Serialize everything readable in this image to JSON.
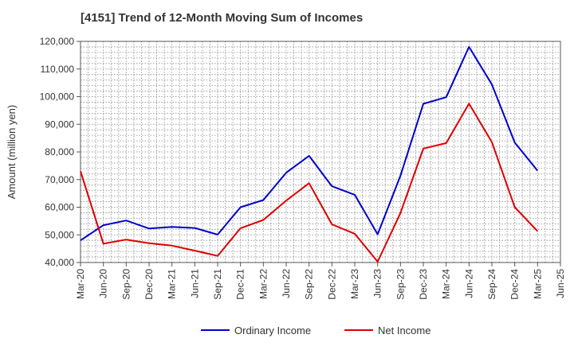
{
  "chart_data": {
    "type": "line",
    "title": "[4151]  Trend of 12-Month Moving Sum of Incomes",
    "xlabel": "",
    "ylabel": "Amount (million yen)",
    "ylim": [
      40000,
      120000
    ],
    "yticks": [
      40000,
      50000,
      60000,
      70000,
      80000,
      90000,
      100000,
      110000,
      120000
    ],
    "ytick_labels": [
      "40,000",
      "50,000",
      "60,000",
      "70,000",
      "80,000",
      "90,000",
      "100,000",
      "110,000",
      "120,000"
    ],
    "x_tick_labels": [
      "Mar-20",
      "Jun-20",
      "Sep-20",
      "Dec-20",
      "Mar-21",
      "Jun-21",
      "Sep-21",
      "Dec-21",
      "Mar-22",
      "Jun-22",
      "Sep-22",
      "Dec-22",
      "Mar-23",
      "Jun-23",
      "Sep-23",
      "Dec-23",
      "Mar-24",
      "Jun-24",
      "Sep-24",
      "Dec-24",
      "Mar-25",
      "Jun-25"
    ],
    "categories": [
      "Mar-20",
      "Jun-20",
      "Sep-20",
      "Dec-20",
      "Mar-21",
      "Jun-21",
      "Sep-21",
      "Dec-21",
      "Mar-22",
      "Jun-22",
      "Sep-22",
      "Dec-22",
      "Mar-23",
      "Jun-23",
      "Sep-23",
      "Dec-23",
      "Mar-24",
      "Jun-24",
      "Sep-24",
      "Dec-24",
      "Mar-25"
    ],
    "grid": true,
    "legend_position": "bottom-center",
    "series": [
      {
        "name": "Ordinary Income",
        "color": "#0000cc",
        "values": [
          48000,
          53500,
          55200,
          52300,
          52900,
          52500,
          50100,
          60000,
          62600,
          72500,
          78600,
          67600,
          64500,
          50200,
          71400,
          97400,
          99800,
          118000,
          104400,
          83400,
          73200
        ]
      },
      {
        "name": "Net Income",
        "color": "#dd0000",
        "values": [
          73000,
          46800,
          48300,
          47000,
          46100,
          44300,
          42400,
          52400,
          55400,
          62400,
          68700,
          53800,
          50400,
          40300,
          57900,
          81200,
          83200,
          97500,
          83500,
          60000,
          51300
        ]
      }
    ]
  }
}
